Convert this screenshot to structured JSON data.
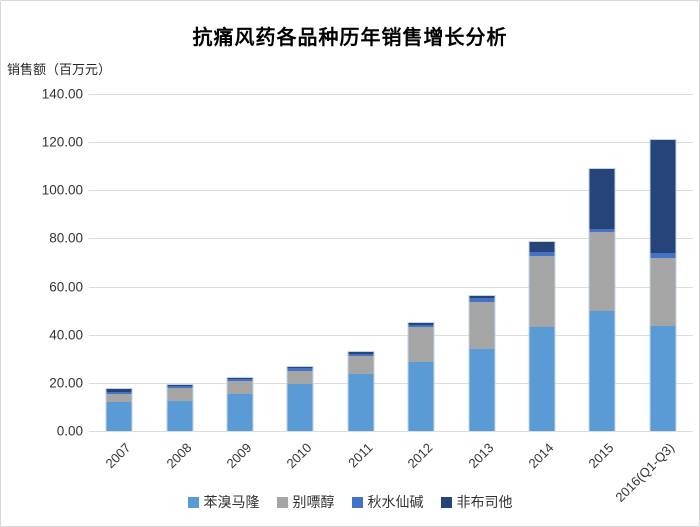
{
  "chart_data": {
    "type": "bar",
    "subtype": "stacked",
    "title": "抗痛风药各品种历年销售增长分析",
    "ylabel": "销售额（百万元）",
    "xlabel": "",
    "grid": true,
    "legend_position": "bottom",
    "ylim": [
      0,
      140
    ],
    "yticks": {
      "values": [
        0,
        20,
        40,
        60,
        80,
        100,
        120,
        140
      ],
      "labels": [
        "0.00",
        "20.00",
        "40.00",
        "60.00",
        "80.00",
        "100.00",
        "120.00",
        "140.00"
      ]
    },
    "categories": [
      "2007",
      "2008",
      "2009",
      "2010",
      "2011",
      "2012",
      "2013",
      "2014",
      "2015",
      "2016(Q1-Q3)"
    ],
    "series": [
      {
        "name": "苯溴马隆",
        "color": "#5B9BD5",
        "values": [
          12.0,
          12.5,
          15.4,
          19.4,
          23.5,
          28.5,
          34.2,
          43.3,
          50.0,
          43.8
        ]
      },
      {
        "name": "别嘌醇",
        "color": "#A5A5A5",
        "values": [
          3.2,
          5.3,
          5.4,
          5.5,
          7.6,
          14.6,
          19.6,
          29.6,
          32.6,
          28.2
        ]
      },
      {
        "name": "秋水仙碱",
        "color": "#4472C4",
        "values": [
          1.0,
          0.8,
          0.9,
          1.1,
          1.0,
          0.9,
          1.5,
          1.4,
          1.4,
          1.9
        ]
      },
      {
        "name": "非布司他",
        "color": "#264478",
        "values": [
          1.3,
          0.6,
          0.4,
          0.4,
          0.8,
          0.8,
          1.0,
          4.2,
          25.0,
          47.2
        ]
      }
    ],
    "totals": [
      17.5,
      19.2,
      22.1,
      26.4,
      32.9,
      44.8,
      56.3,
      78.5,
      109.0,
      121.1
    ]
  }
}
